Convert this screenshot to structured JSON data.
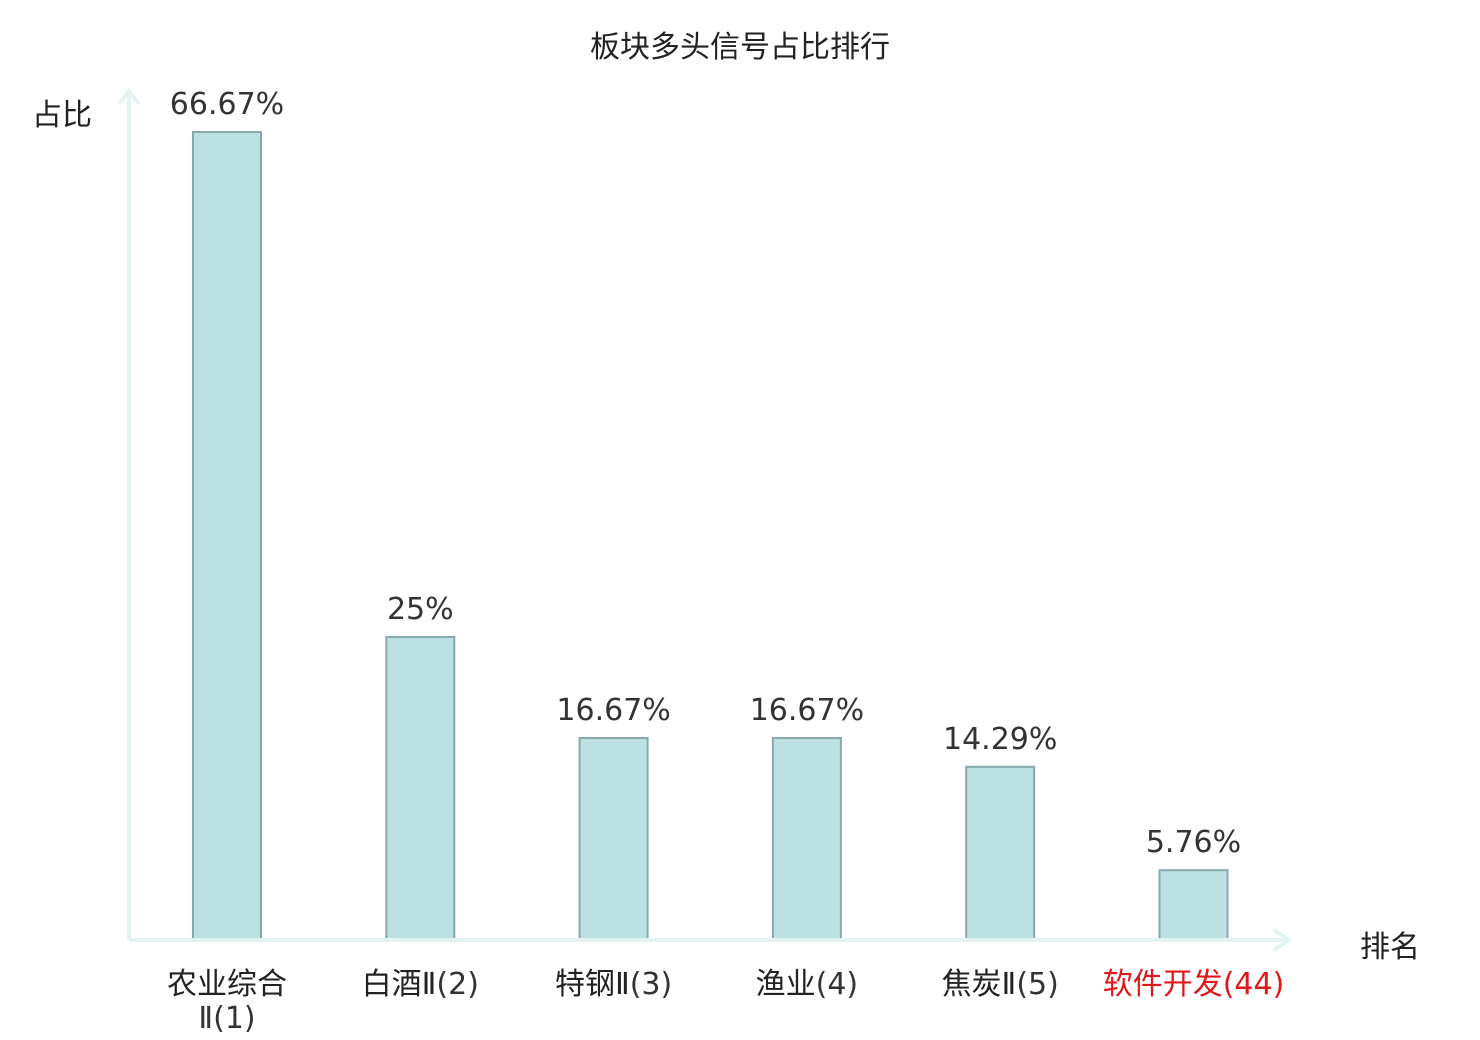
{
  "chart_data": {
    "type": "bar",
    "title": "板块多头信号占比排行",
    "xlabel": "排名",
    "ylabel": "占比",
    "categories": [
      {
        "name": "农业综合Ⅱ",
        "rank": "(1)"
      },
      {
        "name": "白酒Ⅱ",
        "rank": "(2)"
      },
      {
        "name": "特钢Ⅱ",
        "rank": "(3)"
      },
      {
        "name": "渔业",
        "rank": "(4)"
      },
      {
        "name": "焦炭Ⅱ",
        "rank": "(5)"
      },
      {
        "name": "软件开发",
        "rank": "(44)"
      }
    ],
    "values": [
      66.67,
      25,
      16.67,
      16.67,
      14.29,
      5.76
    ],
    "value_labels": [
      "66.67%",
      "25%",
      "16.67%",
      "16.67%",
      "14.29%",
      "5.76%"
    ],
    "highlight_index": 5,
    "ylim": [
      0,
      70
    ],
    "grid": false,
    "legend": "none",
    "colors": {
      "bar_fill": "#bde0e2",
      "bar_stroke": "#86a9ab",
      "axis": "#e3f3f1",
      "text": "#333333",
      "highlight_text": "#e0181a"
    }
  }
}
